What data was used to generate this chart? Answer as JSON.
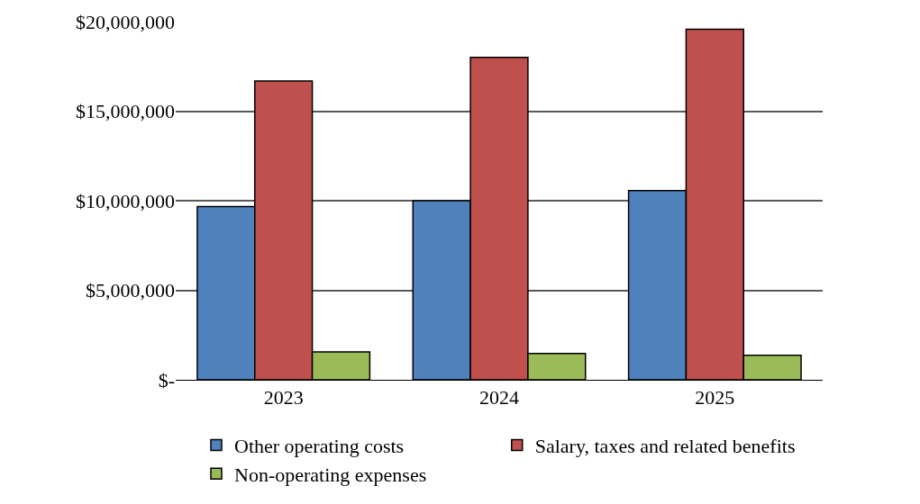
{
  "chart_data": {
    "type": "bar",
    "categories": [
      "2023",
      "2024",
      "2025"
    ],
    "series": [
      {
        "name": "Other operating costs",
        "color": "#4f81bd",
        "values": [
          9670000,
          10000000,
          10570000
        ]
      },
      {
        "name": "Salary, taxes and related benefits",
        "color": "#c0504d",
        "values": [
          16680000,
          18000000,
          19570000
        ]
      },
      {
        "name": "Non-operating expenses",
        "color": "#9bbb59",
        "values": [
          1560000,
          1470000,
          1370000
        ]
      }
    ],
    "ylim": [
      0,
      20000000
    ],
    "yticks": [
      {
        "value": 0,
        "label": "$-"
      },
      {
        "value": 5000000,
        "label": "$5,000,000"
      },
      {
        "value": 10000000,
        "label": "$10,000,000"
      },
      {
        "value": 15000000,
        "label": "$15,000,000"
      },
      {
        "value": 20000000,
        "label": "$20,000,000"
      }
    ],
    "grid": "y",
    "legend": "bottom"
  }
}
